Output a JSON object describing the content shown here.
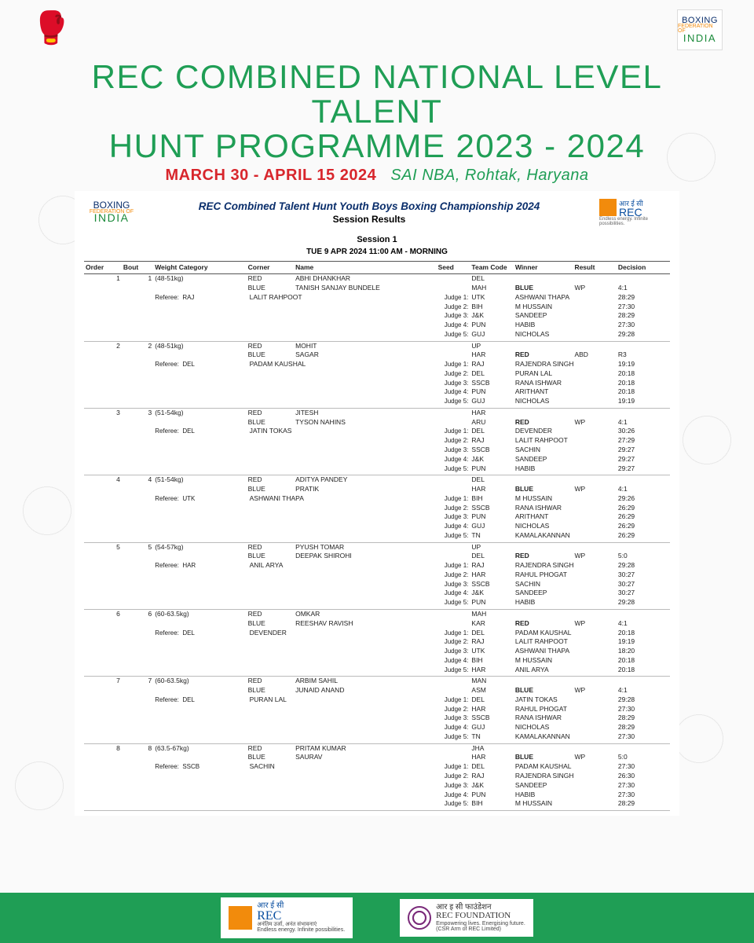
{
  "header": {
    "title_line1": "REC COMBINED NATIONAL LEVEL TALENT",
    "title_line2": "HUNT PROGRAMME 2023 - 2024",
    "dates": "MARCH 30 - APRIL 15 2024",
    "venue": "SAI NBA, Rohtak, Haryana",
    "title_color": "#1f9e55",
    "dates_color": "#d8262c",
    "title_font_size": 42,
    "subtitle_font_size": 20
  },
  "bfi_logo": {
    "l1": "BOXING",
    "l2": "FEDERATION OF",
    "l3": "INDIA"
  },
  "rec_logo": {
    "hi": "आर ई सी",
    "en": "REC",
    "tag": "Endless energy. Infinite possibilities."
  },
  "sheet": {
    "title": "REC Combined Talent Hunt Youth Boys Boxing Championship 2024",
    "subtitle": "Session Results",
    "session_label": "Session 1",
    "session_when": "TUE 9 APR 2024  11:00 AM - MORNING",
    "columns": [
      "Order",
      "Bout",
      "Weight Category",
      "Corner",
      "Name",
      "Seed",
      "Team\nCode",
      "Winner",
      "Result",
      "Decision"
    ]
  },
  "bouts": [
    {
      "order": "1",
      "bout": "1",
      "wcat": "(48-51kg)",
      "red": {
        "name": "ABHI DHANKHAR",
        "team": "DEL"
      },
      "blue": {
        "name": "TANISH SANJAY BUNDELE",
        "team": "MAH"
      },
      "winner": "BLUE",
      "result": "WP",
      "decision": "4:1",
      "referee": {
        "code": "RAJ",
        "name": "LALIT RAHPOOT"
      },
      "judges": [
        {
          "n": "1",
          "code": "UTK",
          "name": "ASHWANI THAPA",
          "score": "28:29"
        },
        {
          "n": "2",
          "code": "BIH",
          "name": "M HUSSAIN",
          "score": "27:30"
        },
        {
          "n": "3",
          "code": "J&K",
          "name": "SANDEEP",
          "score": "28:29"
        },
        {
          "n": "4",
          "code": "PUN",
          "name": "HABIB",
          "score": "27:30"
        },
        {
          "n": "5",
          "code": "GUJ",
          "name": "NICHOLAS",
          "score": "29:28"
        }
      ]
    },
    {
      "order": "2",
      "bout": "2",
      "wcat": "(48-51kg)",
      "red": {
        "name": "MOHIT",
        "team": "UP"
      },
      "blue": {
        "name": "SAGAR",
        "team": "HAR"
      },
      "winner": "RED",
      "result": "ABD",
      "decision": "R3",
      "referee": {
        "code": "DEL",
        "name": "PADAM KAUSHAL"
      },
      "judges": [
        {
          "n": "1",
          "code": "RAJ",
          "name": "RAJENDRA SINGH",
          "score": "19:19"
        },
        {
          "n": "2",
          "code": "DEL",
          "name": "PURAN LAL",
          "score": "20:18"
        },
        {
          "n": "3",
          "code": "SSCB",
          "name": "RANA ISHWAR",
          "score": "20:18"
        },
        {
          "n": "4",
          "code": "PUN",
          "name": "ARITHANT",
          "score": "20:18"
        },
        {
          "n": "5",
          "code": "GUJ",
          "name": "NICHOLAS",
          "score": "19:19"
        }
      ]
    },
    {
      "order": "3",
      "bout": "3",
      "wcat": "(51-54kg)",
      "red": {
        "name": "JITESH",
        "team": "HAR"
      },
      "blue": {
        "name": "TYSON NAHINS",
        "team": "ARU"
      },
      "winner": "RED",
      "result": "WP",
      "decision": "4:1",
      "referee": {
        "code": "DEL",
        "name": "JATIN TOKAS"
      },
      "judges": [
        {
          "n": "1",
          "code": "DEL",
          "name": "DEVENDER",
          "score": "30:26"
        },
        {
          "n": "2",
          "code": "RAJ",
          "name": "LALIT RAHPOOT",
          "score": "27:29"
        },
        {
          "n": "3",
          "code": "SSCB",
          "name": "SACHIN",
          "score": "29:27"
        },
        {
          "n": "4",
          "code": "J&K",
          "name": "SANDEEP",
          "score": "29:27"
        },
        {
          "n": "5",
          "code": "PUN",
          "name": "HABIB",
          "score": "29:27"
        }
      ]
    },
    {
      "order": "4",
      "bout": "4",
      "wcat": "(51-54kg)",
      "red": {
        "name": "ADITYA PANDEY",
        "team": "DEL"
      },
      "blue": {
        "name": "PRATIK",
        "team": "HAR"
      },
      "winner": "BLUE",
      "result": "WP",
      "decision": "4:1",
      "referee": {
        "code": "UTK",
        "name": "ASHWANI THAPA"
      },
      "judges": [
        {
          "n": "1",
          "code": "BIH",
          "name": "M HUSSAIN",
          "score": "29:26"
        },
        {
          "n": "2",
          "code": "SSCB",
          "name": "RANA ISHWAR",
          "score": "26:29"
        },
        {
          "n": "3",
          "code": "PUN",
          "name": "ARITHANT",
          "score": "26:29"
        },
        {
          "n": "4",
          "code": "GUJ",
          "name": "NICHOLAS",
          "score": "26:29"
        },
        {
          "n": "5",
          "code": "TN",
          "name": "KAMALAKANNAN",
          "score": "26:29"
        }
      ]
    },
    {
      "order": "5",
      "bout": "5",
      "wcat": "(54-57kg)",
      "red": {
        "name": "PYUSH TOMAR",
        "team": "UP"
      },
      "blue": {
        "name": "DEEPAK SHIROHI",
        "team": "DEL"
      },
      "winner": "RED",
      "result": "WP",
      "decision": "5:0",
      "referee": {
        "code": "HAR",
        "name": "ANIL ARYA"
      },
      "judges": [
        {
          "n": "1",
          "code": "RAJ",
          "name": "RAJENDRA SINGH",
          "score": "29:28"
        },
        {
          "n": "2",
          "code": "HAR",
          "name": "RAHUL PHOGAT",
          "score": "30:27"
        },
        {
          "n": "3",
          "code": "SSCB",
          "name": "SACHIN",
          "score": "30:27"
        },
        {
          "n": "4",
          "code": "J&K",
          "name": "SANDEEP",
          "score": "30:27"
        },
        {
          "n": "5",
          "code": "PUN",
          "name": "HABIB",
          "score": "29:28"
        }
      ]
    },
    {
      "order": "6",
      "bout": "6",
      "wcat": "(60-63.5kg)",
      "red": {
        "name": "OMKAR",
        "team": "MAH"
      },
      "blue": {
        "name": "REESHAV RAVISH",
        "team": "KAR"
      },
      "winner": "RED",
      "result": "WP",
      "decision": "4:1",
      "referee": {
        "code": "DEL",
        "name": "DEVENDER"
      },
      "judges": [
        {
          "n": "1",
          "code": "DEL",
          "name": "PADAM KAUSHAL",
          "score": "20:18"
        },
        {
          "n": "2",
          "code": "RAJ",
          "name": "LALIT RAHPOOT",
          "score": "19:19"
        },
        {
          "n": "3",
          "code": "UTK",
          "name": "ASHWANI THAPA",
          "score": "18:20"
        },
        {
          "n": "4",
          "code": "BIH",
          "name": "M HUSSAIN",
          "score": "20:18"
        },
        {
          "n": "5",
          "code": "HAR",
          "name": "ANIL ARYA",
          "score": "20:18"
        }
      ]
    },
    {
      "order": "7",
      "bout": "7",
      "wcat": "(60-63.5kg)",
      "red": {
        "name": "ARBIM SAHIL",
        "team": "MAN"
      },
      "blue": {
        "name": "JUNAID ANAND",
        "team": "ASM"
      },
      "winner": "BLUE",
      "result": "WP",
      "decision": "4:1",
      "referee": {
        "code": "DEL",
        "name": "PURAN LAL"
      },
      "judges": [
        {
          "n": "1",
          "code": "DEL",
          "name": "JATIN TOKAS",
          "score": "29:28"
        },
        {
          "n": "2",
          "code": "HAR",
          "name": "RAHUL PHOGAT",
          "score": "27:30"
        },
        {
          "n": "3",
          "code": "SSCB",
          "name": "RANA ISHWAR",
          "score": "28:29"
        },
        {
          "n": "4",
          "code": "GUJ",
          "name": "NICHOLAS",
          "score": "28:29"
        },
        {
          "n": "5",
          "code": "TN",
          "name": "KAMALAKANNAN",
          "score": "27:30"
        }
      ]
    },
    {
      "order": "8",
      "bout": "8",
      "wcat": "(63.5-67kg)",
      "red": {
        "name": "PRITAM KUMAR",
        "team": "JHA"
      },
      "blue": {
        "name": "SAURAV",
        "team": "HAR"
      },
      "winner": "BLUE",
      "result": "WP",
      "decision": "5:0",
      "referee": {
        "code": "SSCB",
        "name": "SACHIN"
      },
      "judges": [
        {
          "n": "1",
          "code": "DEL",
          "name": "PADAM KAUSHAL",
          "score": "27:30"
        },
        {
          "n": "2",
          "code": "RAJ",
          "name": "RAJENDRA SINGH",
          "score": "26:30"
        },
        {
          "n": "3",
          "code": "J&K",
          "name": "SANDEEP",
          "score": "27:30"
        },
        {
          "n": "4",
          "code": "PUN",
          "name": "HABIB",
          "score": "27:30"
        },
        {
          "n": "5",
          "code": "BIH",
          "name": "M HUSSAIN",
          "score": "28:29"
        }
      ]
    }
  ],
  "footer": {
    "rec": {
      "hi": "आर ई सी",
      "en": "REC",
      "tag": "अनंतिम उर्जा, अनंत संभावनाएं\nEndless energy. Infinite possibilities."
    },
    "foundation": {
      "hi": "आर इ सी फाउंडेशन",
      "en": "REC FOUNDATION",
      "tag": "Empowering lives. Energising future.\n(CSR Arm of REC Limited)"
    }
  }
}
